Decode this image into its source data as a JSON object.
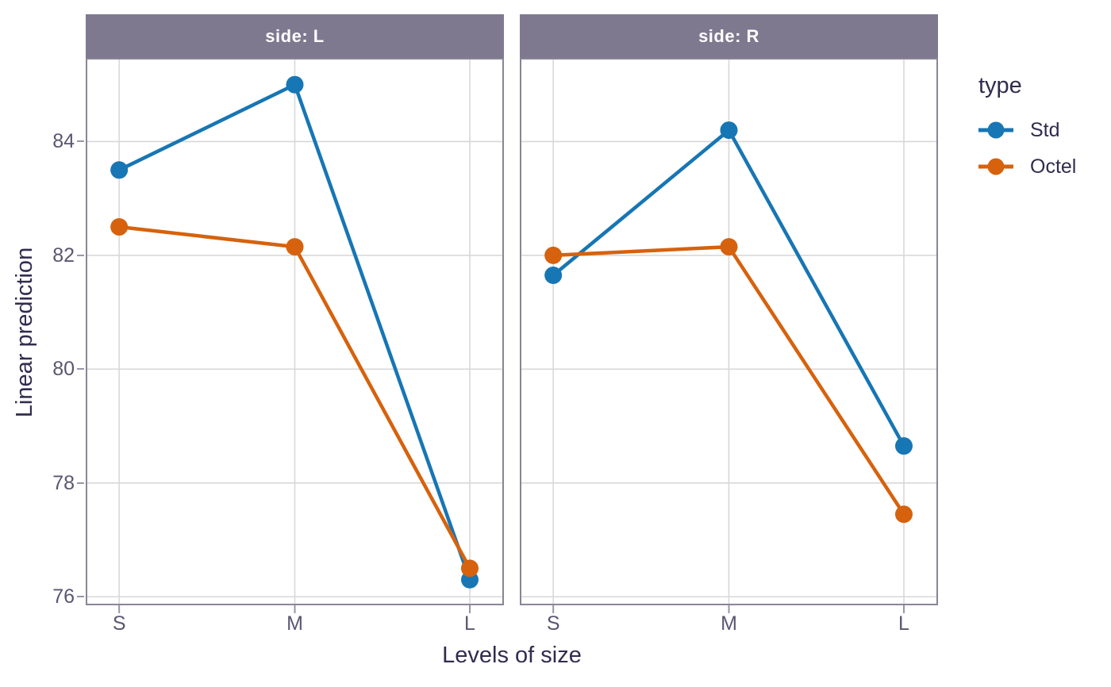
{
  "chart_data": {
    "type": "line",
    "categories": [
      "S",
      "M",
      "L"
    ],
    "facets": [
      {
        "label": "side: L",
        "series": [
          {
            "name": "Std",
            "values": [
              83.5,
              85.0,
              76.3
            ]
          },
          {
            "name": "Octel",
            "values": [
              82.5,
              82.15,
              76.5
            ]
          }
        ]
      },
      {
        "label": "side: R",
        "series": [
          {
            "name": "Std",
            "values": [
              81.65,
              84.2,
              78.65
            ]
          },
          {
            "name": "Octel",
            "values": [
              82.0,
              82.15,
              77.45
            ]
          }
        ]
      }
    ],
    "xlabel": "Levels of size",
    "ylabel": "Linear prediction",
    "yticks": [
      76,
      78,
      80,
      82,
      84
    ],
    "ylim": [
      75.85,
      85.47
    ],
    "grid": true,
    "legend": {
      "title": "type",
      "entries": [
        "Std",
        "Octel"
      ],
      "position": "right"
    },
    "series_colors": {
      "Std": "#1776b4",
      "Octel": "#d6620d"
    }
  },
  "colors": {
    "background": "#ffffff",
    "strip_fill": "#7f7990",
    "strip_text": "#ffffff",
    "axis_title": "#322b4e",
    "tick_label": "#5b5671",
    "grid": "#d8d8d8",
    "panel_border": "#8a8498",
    "tick_mark": "#9a95a8"
  }
}
